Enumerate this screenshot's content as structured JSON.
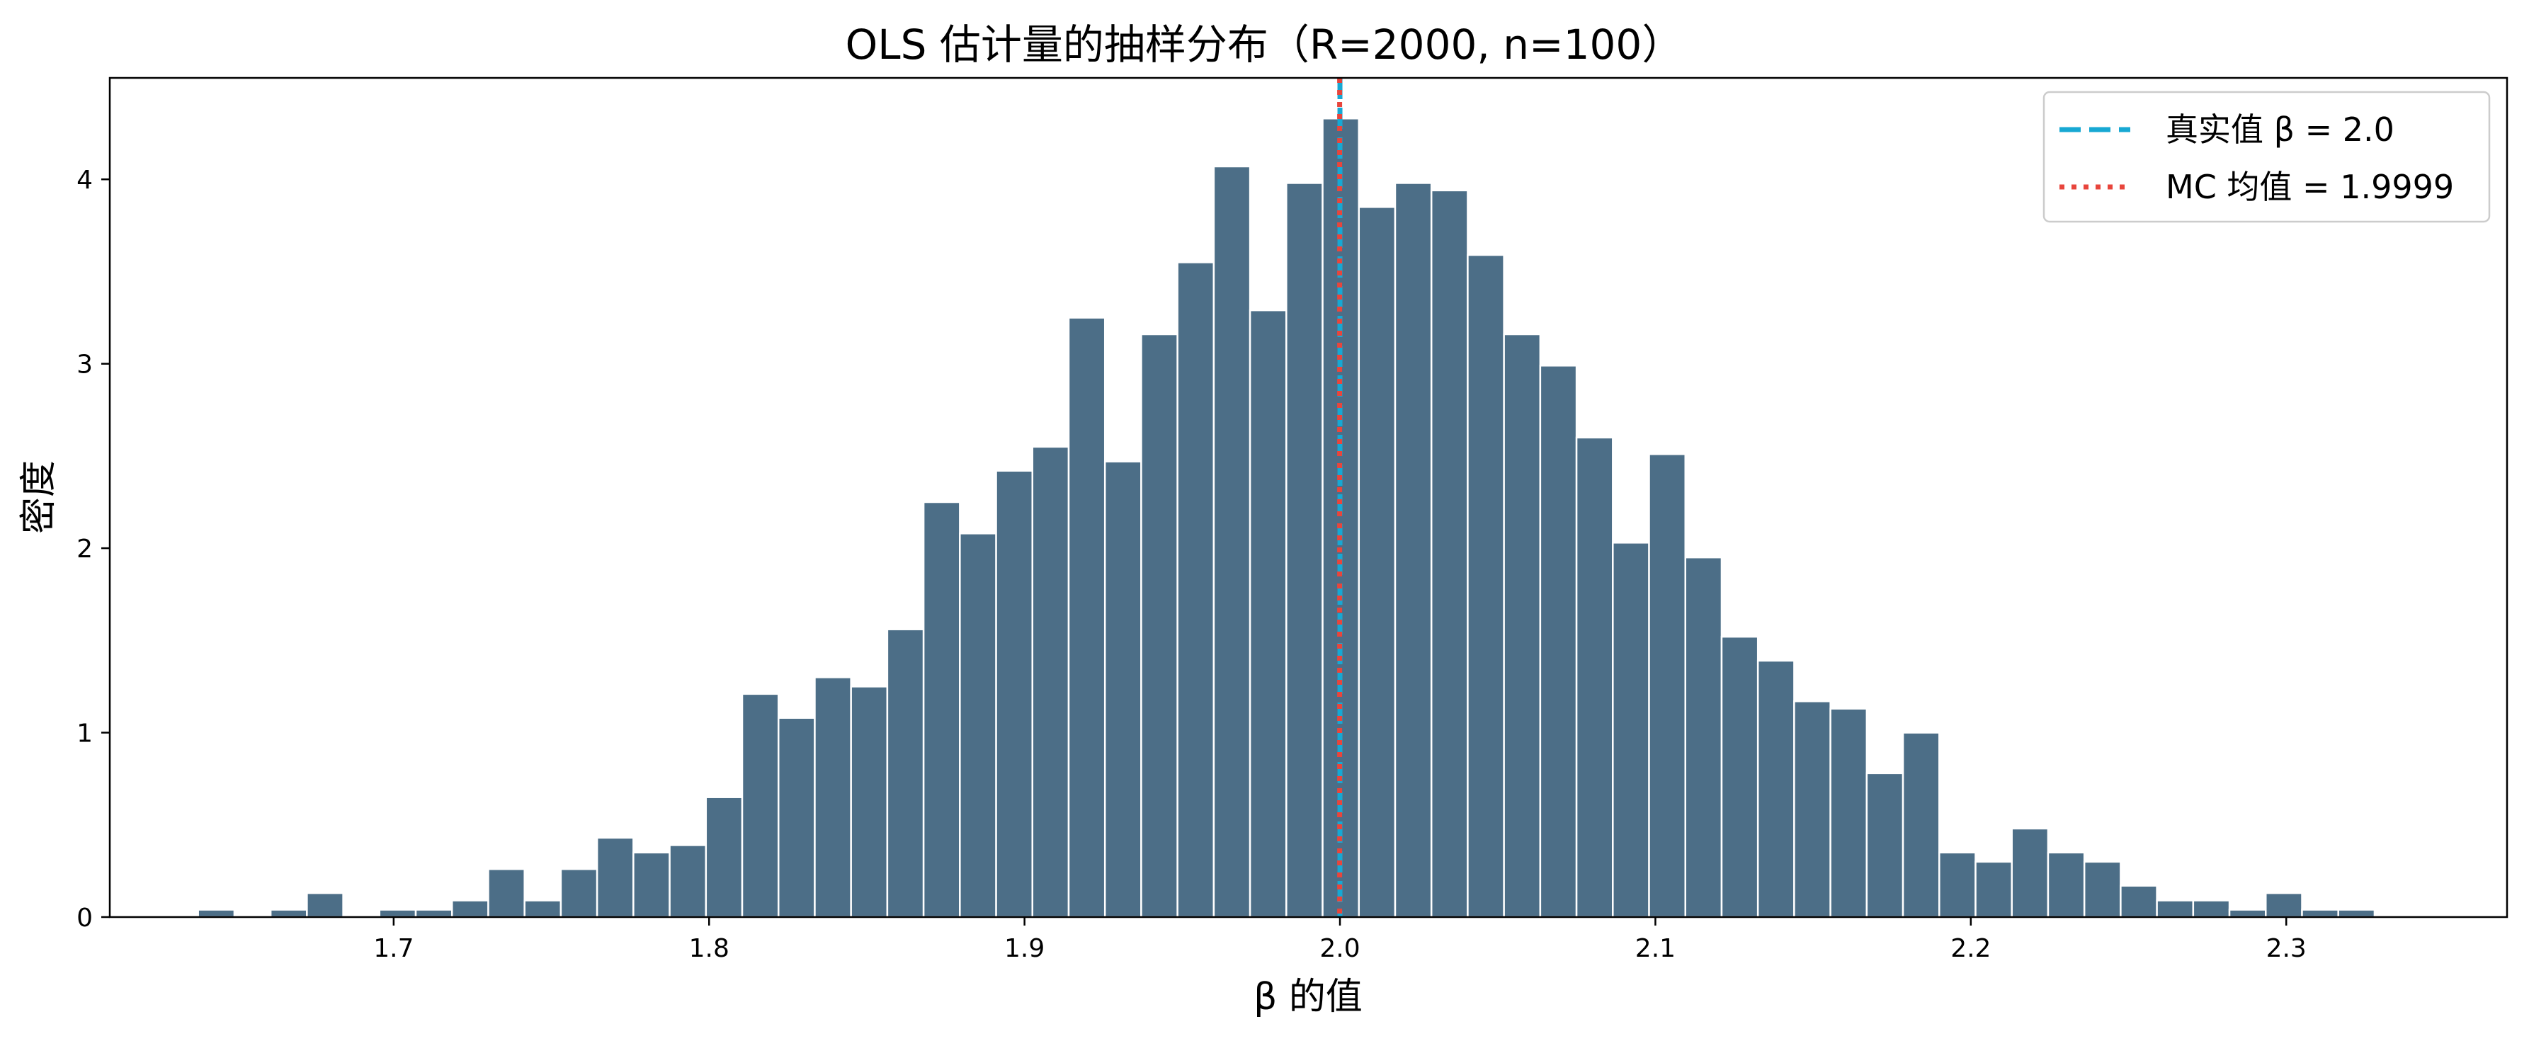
{
  "chart_data": {
    "type": "histogram",
    "title": "OLS 估计量的抽样分布（R=2000, n=100）",
    "xlabel": "β 的值",
    "ylabel": "密度",
    "xlim": [
      1.61,
      2.37
    ],
    "ylim": [
      0,
      4.55
    ],
    "xticks": [
      1.7,
      1.8,
      1.9,
      2.0,
      2.1,
      2.2,
      2.3
    ],
    "xtick_labels": [
      "1.7",
      "1.8",
      "1.9",
      "2.0",
      "2.1",
      "2.2",
      "2.3"
    ],
    "yticks": [
      0,
      1,
      2,
      3,
      4
    ],
    "ytick_labels": [
      "0",
      "1",
      "2",
      "3",
      "4"
    ],
    "bin_start": 1.638,
    "bin_width": 0.0115,
    "densities": [
      0.04,
      0,
      0.04,
      0.13,
      0,
      0.04,
      0.04,
      0.09,
      0.26,
      0.09,
      0.26,
      0.43,
      0.35,
      0.39,
      0.65,
      1.21,
      1.08,
      1.3,
      1.25,
      1.56,
      2.25,
      2.08,
      2.42,
      2.55,
      3.25,
      2.47,
      3.16,
      3.55,
      4.07,
      3.29,
      3.98,
      4.33,
      3.85,
      3.98,
      3.94,
      3.59,
      3.16,
      2.99,
      2.6,
      2.03,
      2.51,
      1.95,
      1.52,
      1.39,
      1.17,
      1.13,
      0.78,
      1.0,
      0.35,
      0.3,
      0.48,
      0.35,
      0.3,
      0.17,
      0.09,
      0.09,
      0.04,
      0.13,
      0.04,
      0.04
    ],
    "bar_color": "#4c6e87",
    "bar_edge_color": "#ffffff",
    "grid": false,
    "legend_position": "top-right",
    "reference_lines": [
      {
        "label": "真实值 β = 2.0",
        "x": 2.0,
        "style": "dashed",
        "color": "#17a8d3"
      },
      {
        "label": "MC 均值 = 1.9999",
        "x": 1.9999,
        "style": "dotted",
        "color": "#e8453c"
      }
    ]
  }
}
